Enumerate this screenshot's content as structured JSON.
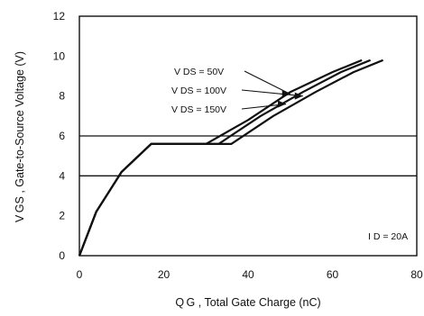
{
  "chart_data": {
    "type": "line",
    "xlabel": "Q G , Total Gate Charge (nC)",
    "ylabel": "V GS , Gate-to-Source Voltage (V)",
    "xlim": [
      0,
      80
    ],
    "ylim": [
      0,
      12
    ],
    "x_ticks": [
      0,
      20,
      40,
      60,
      80
    ],
    "y_ticks": [
      0,
      2,
      4,
      6,
      8,
      10,
      12
    ],
    "grid": false,
    "reference_lines_y": [
      4,
      6
    ],
    "annotation": "I D = 20A",
    "series": [
      {
        "name": "V DS = 50V",
        "points": [
          [
            0,
            0
          ],
          [
            4,
            2.2
          ],
          [
            10,
            4.2
          ],
          [
            17,
            5.6
          ],
          [
            30,
            5.6
          ],
          [
            40,
            6.8
          ],
          [
            50,
            8.2
          ],
          [
            60,
            9.2
          ],
          [
            67,
            9.8
          ]
        ]
      },
      {
        "name": "V DS = 100V",
        "points": [
          [
            0,
            0
          ],
          [
            4,
            2.2
          ],
          [
            10,
            4.2
          ],
          [
            17,
            5.6
          ],
          [
            33,
            5.6
          ],
          [
            43,
            7.0
          ],
          [
            53,
            8.2
          ],
          [
            62,
            9.2
          ],
          [
            69,
            9.8
          ]
        ]
      },
      {
        "name": "V DS = 150V",
        "points": [
          [
            0,
            0
          ],
          [
            4,
            2.2
          ],
          [
            10,
            4.2
          ],
          [
            17,
            5.6
          ],
          [
            36,
            5.6
          ],
          [
            46,
            7.0
          ],
          [
            56,
            8.2
          ],
          [
            65,
            9.2
          ],
          [
            72,
            9.8
          ]
        ]
      }
    ],
    "legend_labels": [
      {
        "series": 0,
        "text": "V DS = 50V",
        "anchor": [
          50,
          8.1
        ]
      },
      {
        "series": 1,
        "text": "V DS = 100V",
        "anchor": [
          53,
          8.0
        ]
      },
      {
        "series": 2,
        "text": "V DS = 150V",
        "anchor": [
          49,
          7.6
        ]
      }
    ]
  }
}
